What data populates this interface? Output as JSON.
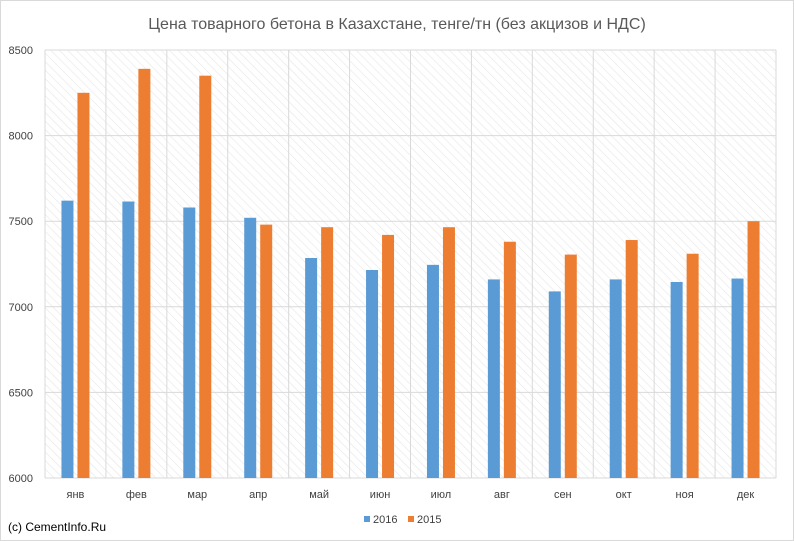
{
  "chart_data": {
    "type": "bar",
    "title": "Цена товарного бетона в Казахстане, тенге/тн (без акцизов и НДС)",
    "categories": [
      "янв",
      "фев",
      "мар",
      "апр",
      "май",
      "июн",
      "июл",
      "авг",
      "сен",
      "окт",
      "ноя",
      "дек"
    ],
    "series": [
      {
        "name": "2016",
        "color": "#5b9bd5",
        "values": [
          7620,
          7615,
          7580,
          7520,
          7285,
          7215,
          7245,
          7160,
          7090,
          7160,
          7145,
          7165
        ]
      },
      {
        "name": "2015",
        "color": "#ed7d31",
        "values": [
          8250,
          8390,
          8350,
          7480,
          7465,
          7420,
          7465,
          7380,
          7305,
          7390,
          7310,
          7500
        ]
      }
    ],
    "ylim": [
      6000,
      8500
    ],
    "yticks": [
      6000,
      6500,
      7000,
      7500,
      8000,
      8500
    ],
    "grid": true,
    "legend_position": "bottom"
  },
  "credit": "(c) CementInfo.Ru"
}
